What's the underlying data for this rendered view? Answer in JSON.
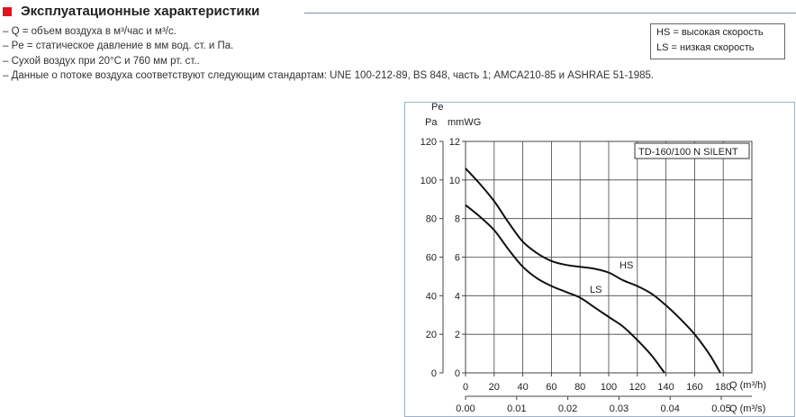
{
  "header": {
    "title": "Эксплуатационные характеристики",
    "accent": "#e0141e"
  },
  "notes": [
    "– Q = объем воздуха в м³/час и м³/с.",
    "– Pe = статическое давление в мм вод. ст. и Па.",
    "– Сухой воздух при 20°C и 760 мм рт. ст..",
    "– Данные о потоке воздуха соответствуют следующим стандартам: UNE 100-212-89, BS 848, часть 1; AMCA210-85 и ASHRAE 51-1985."
  ],
  "legend": {
    "hs": "HS  = высокая скорость",
    "ls": "LS  = низкая скорость"
  },
  "chart_data": {
    "type": "line",
    "title": "TD-160/100 N SILENT",
    "ylabel": "Pe",
    "y_units": [
      "Pa",
      "mmWG"
    ],
    "ylim": [
      0,
      12
    ],
    "y_ticks_mmwg": [
      "0",
      "2",
      "4",
      "6",
      "8",
      "10",
      "12"
    ],
    "y_ticks_pa": [
      "0",
      "20",
      "40",
      "60",
      "80",
      "100",
      "120"
    ],
    "xlabel": "Q (m³/h)",
    "xlim": [
      0,
      200
    ],
    "x_ticks": [
      "0",
      "20",
      "40",
      "60",
      "80",
      "100",
      "120",
      "140",
      "160",
      "180"
    ],
    "xlabel2": "Q (m³/s)",
    "x2_ticks": [
      "0.00",
      "0.01",
      "0.02",
      "0.03",
      "0.04",
      "0.05"
    ],
    "grid": true,
    "series": [
      {
        "name": "HS",
        "x": [
          0,
          10,
          20,
          30,
          40,
          50,
          60,
          70,
          80,
          90,
          100,
          110,
          120,
          130,
          140,
          150,
          160,
          170,
          178
        ],
        "y": [
          10.6,
          9.8,
          8.9,
          7.8,
          6.8,
          6.2,
          5.8,
          5.6,
          5.5,
          5.4,
          5.2,
          4.8,
          4.5,
          4.1,
          3.5,
          2.8,
          2.0,
          1.0,
          0
        ]
      },
      {
        "name": "LS",
        "x": [
          0,
          10,
          20,
          30,
          40,
          50,
          60,
          70,
          80,
          90,
          100,
          110,
          120,
          130,
          139
        ],
        "y": [
          8.7,
          8.1,
          7.4,
          6.4,
          5.5,
          4.9,
          4.5,
          4.2,
          3.9,
          3.4,
          2.9,
          2.4,
          1.7,
          0.9,
          0
        ]
      }
    ]
  }
}
